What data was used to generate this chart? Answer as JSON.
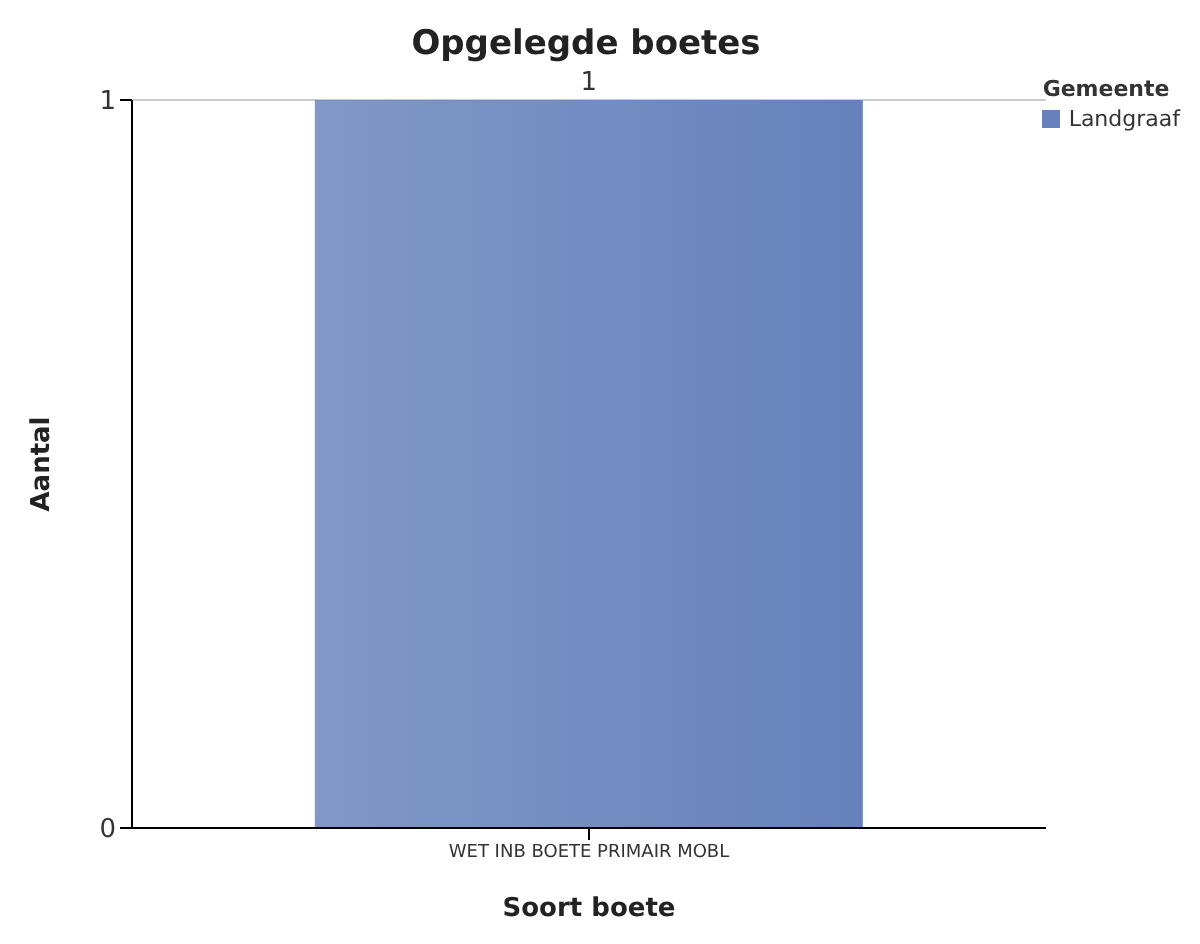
{
  "chart_data": {
    "type": "bar",
    "title": "Opgelegde boetes",
    "xlabel": "Soort boete",
    "ylabel": "Aantal",
    "legend_title": "Gemeente",
    "categories": [
      "WET INB BOETE PRIMAIR MOBL"
    ],
    "series": [
      {
        "name": "Landgraaf",
        "color": "#6681bb",
        "values": [
          1
        ]
      }
    ],
    "ylim": [
      0,
      1
    ],
    "yticks": [
      0,
      1
    ],
    "grid": "y",
    "legend": "top right",
    "data_labels": true
  }
}
